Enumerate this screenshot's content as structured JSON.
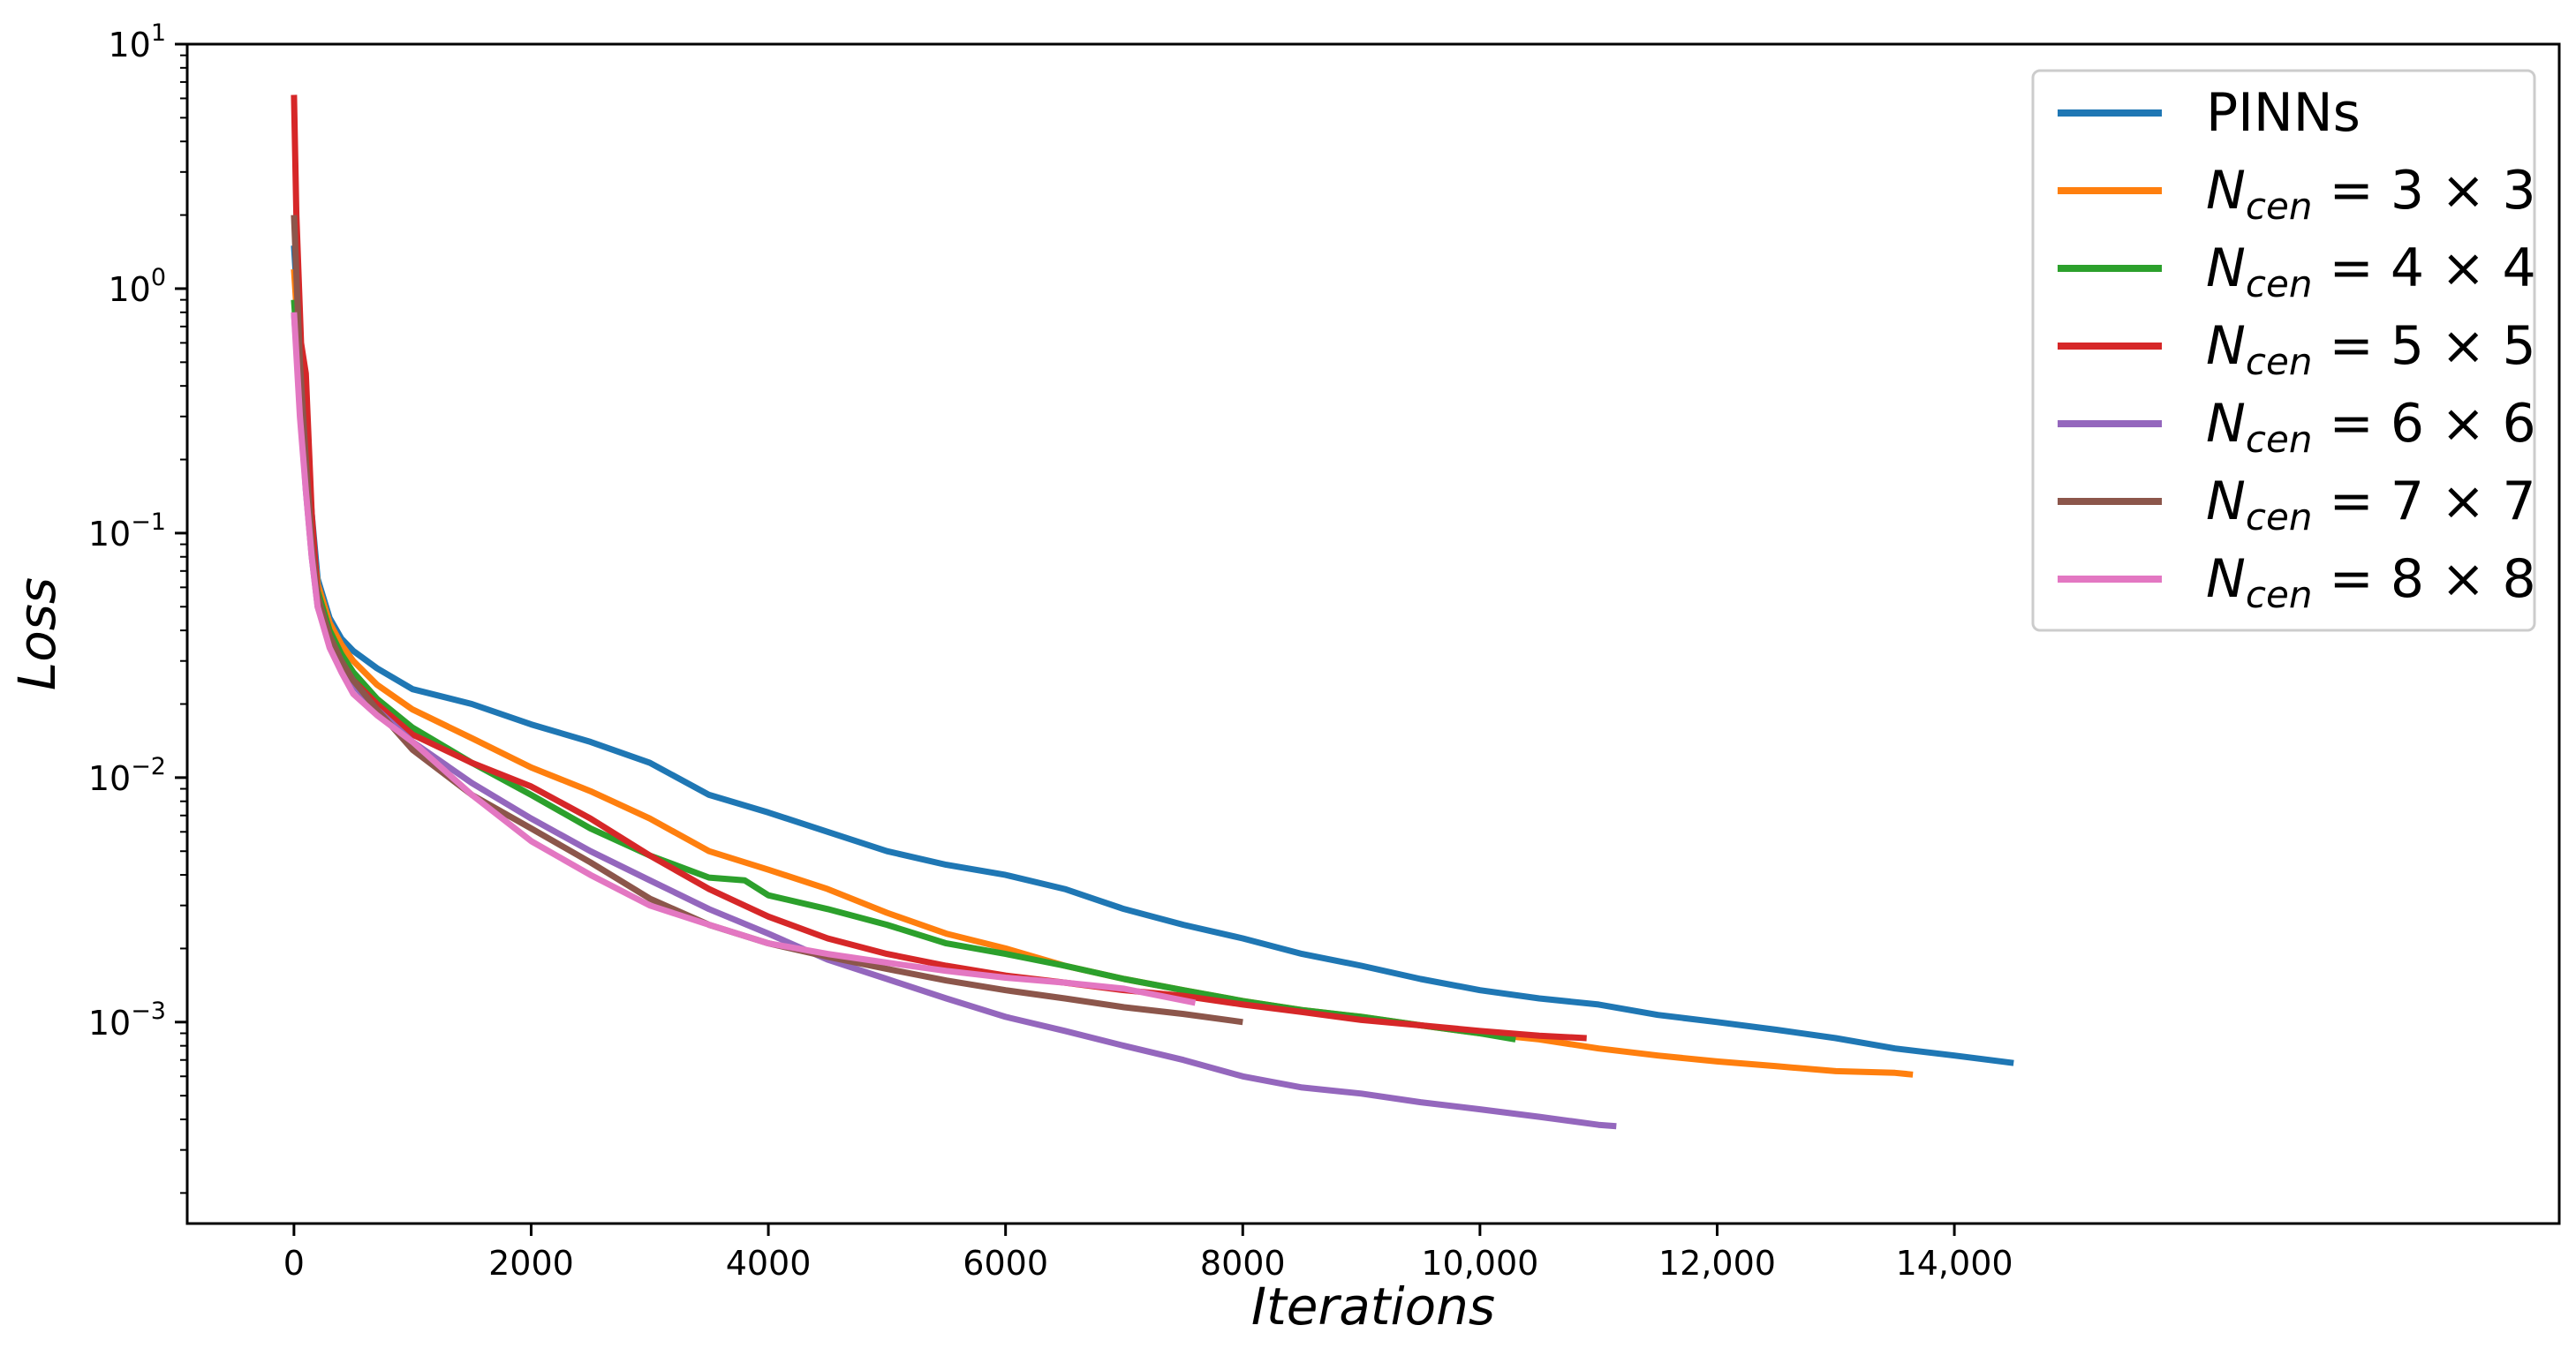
{
  "chart_data": {
    "type": "line",
    "title": "",
    "xlabel": "Iterations",
    "ylabel": "Loss",
    "xlim": [
      -900,
      19100
    ],
    "ylim": [
      0.00015,
      10
    ],
    "yscale": "log",
    "grid": false,
    "legend_position": "top-right",
    "x_ticks": [
      {
        "value": 0,
        "label": "0"
      },
      {
        "value": 2000,
        "label": "2000"
      },
      {
        "value": 4000,
        "label": "4000"
      },
      {
        "value": 6000,
        "label": "6000"
      },
      {
        "value": 8000,
        "label": "8000"
      },
      {
        "value": 10000,
        "label": "10,000"
      },
      {
        "value": 12000,
        "label": "12,000"
      },
      {
        "value": 14000,
        "label": "14,000"
      }
    ],
    "y_ticks": [
      {
        "value": 10,
        "base": "10",
        "exp": "1"
      },
      {
        "value": 1,
        "base": "10",
        "exp": "0"
      },
      {
        "value": 0.1,
        "base": "10",
        "exp": "−1"
      },
      {
        "value": 0.01,
        "base": "10",
        "exp": "−2"
      },
      {
        "value": 0.001,
        "base": "10",
        "exp": "−3"
      }
    ],
    "series": [
      {
        "name": "PINNs",
        "legend_main": "PINNs",
        "legend_sub": "",
        "legend_rest": "",
        "color": "#1f77b4",
        "x": [
          0,
          50,
          100,
          150,
          200,
          300,
          400,
          500,
          700,
          1000,
          1500,
          2000,
          2500,
          3000,
          3500,
          4000,
          4500,
          5000,
          5500,
          6000,
          6500,
          7000,
          7500,
          8000,
          8500,
          9000,
          9500,
          10000,
          10500,
          11000,
          11500,
          12000,
          12500,
          13000,
          13500,
          14000,
          14500
        ],
        "y": [
          1.5,
          0.6,
          0.25,
          0.12,
          0.065,
          0.045,
          0.037,
          0.033,
          0.028,
          0.023,
          0.02,
          0.0165,
          0.014,
          0.0115,
          0.0085,
          0.0072,
          0.006,
          0.005,
          0.0044,
          0.004,
          0.0035,
          0.0029,
          0.0025,
          0.0022,
          0.0019,
          0.0017,
          0.0015,
          0.00135,
          0.00125,
          0.00118,
          0.00107,
          0.001,
          0.00093,
          0.00086,
          0.00078,
          0.00073,
          0.00068
        ]
      },
      {
        "name": "N_cen = 3 × 3",
        "legend_main": "N",
        "legend_sub": "cen",
        "legend_rest": " = 3 × 3",
        "color": "#ff7f0e",
        "x": [
          0,
          50,
          100,
          150,
          200,
          300,
          400,
          500,
          700,
          1000,
          1500,
          2000,
          2500,
          3000,
          3500,
          4000,
          4500,
          5000,
          5500,
          6000,
          6500,
          7000,
          7500,
          8000,
          8500,
          9000,
          9500,
          10000,
          10500,
          11000,
          11500,
          12000,
          12500,
          13000,
          13500,
          13650
        ],
        "y": [
          1.2,
          0.5,
          0.2,
          0.1,
          0.062,
          0.043,
          0.035,
          0.03,
          0.024,
          0.019,
          0.0145,
          0.011,
          0.0088,
          0.0068,
          0.005,
          0.0042,
          0.0035,
          0.0028,
          0.0023,
          0.002,
          0.0017,
          0.0015,
          0.00135,
          0.00122,
          0.00112,
          0.00105,
          0.00097,
          0.0009,
          0.00085,
          0.00078,
          0.00073,
          0.00069,
          0.00066,
          0.00063,
          0.00062,
          0.00061
        ]
      },
      {
        "name": "N_cen = 4 × 4",
        "legend_main": "N",
        "legend_sub": "cen",
        "legend_rest": " = 4 × 4",
        "color": "#2ca02c",
        "x": [
          0,
          50,
          100,
          150,
          200,
          300,
          400,
          500,
          700,
          1000,
          1500,
          2000,
          2500,
          3000,
          3500,
          3800,
          4000,
          4500,
          5000,
          5500,
          6000,
          6500,
          7000,
          7500,
          8000,
          8500,
          9000,
          9500,
          10000,
          10300
        ],
        "y": [
          0.9,
          0.4,
          0.17,
          0.09,
          0.058,
          0.04,
          0.032,
          0.027,
          0.021,
          0.016,
          0.0115,
          0.0085,
          0.0062,
          0.0048,
          0.0039,
          0.0038,
          0.0033,
          0.0029,
          0.0025,
          0.0021,
          0.0019,
          0.0017,
          0.0015,
          0.00135,
          0.00122,
          0.00112,
          0.00105,
          0.00097,
          0.0009,
          0.00085
        ]
      },
      {
        "name": "N_cen = 5 × 5",
        "legend_main": "N",
        "legend_sub": "cen",
        "legend_rest": " = 5 × 5",
        "color": "#d62728",
        "x": [
          0,
          20,
          60,
          100,
          150,
          200,
          300,
          400,
          500,
          700,
          1000,
          1500,
          2000,
          2500,
          3000,
          3500,
          4000,
          4500,
          5000,
          5500,
          6000,
          6500,
          7000,
          7500,
          8000,
          8500,
          9000,
          9500,
          10000,
          10500,
          10900
        ],
        "y": [
          6.2,
          2.0,
          0.6,
          0.45,
          0.12,
          0.055,
          0.036,
          0.029,
          0.025,
          0.02,
          0.015,
          0.0115,
          0.0092,
          0.0068,
          0.0048,
          0.0035,
          0.0027,
          0.0022,
          0.0019,
          0.0017,
          0.00155,
          0.00145,
          0.00135,
          0.00128,
          0.00118,
          0.0011,
          0.00102,
          0.00097,
          0.00092,
          0.00088,
          0.00086
        ]
      },
      {
        "name": "N_cen = 6 × 6",
        "legend_main": "N",
        "legend_sub": "cen",
        "legend_rest": " = 6 × 6",
        "color": "#9467bd",
        "x": [
          0,
          50,
          100,
          150,
          200,
          300,
          400,
          500,
          700,
          1000,
          1500,
          2000,
          2500,
          3000,
          3500,
          4000,
          4500,
          5000,
          5500,
          6000,
          6500,
          7000,
          7500,
          8000,
          8500,
          9000,
          9500,
          10000,
          10500,
          11000,
          11150
        ],
        "y": [
          0.8,
          0.35,
          0.15,
          0.08,
          0.05,
          0.035,
          0.028,
          0.024,
          0.019,
          0.014,
          0.0095,
          0.0068,
          0.005,
          0.0038,
          0.0029,
          0.0023,
          0.0018,
          0.0015,
          0.00125,
          0.00105,
          0.00092,
          0.0008,
          0.0007,
          0.0006,
          0.00054,
          0.00051,
          0.00047,
          0.00044,
          0.00041,
          0.00038,
          0.000375
        ]
      },
      {
        "name": "N_cen = 7 × 7",
        "legend_main": "N",
        "legend_sub": "cen",
        "legend_rest": " = 7 × 7",
        "color": "#8c564b",
        "x": [
          0,
          50,
          100,
          150,
          200,
          300,
          400,
          500,
          700,
          1000,
          1500,
          2000,
          2500,
          3000,
          3500,
          4000,
          4500,
          5000,
          5500,
          6000,
          6500,
          7000,
          7500,
          8000
        ],
        "y": [
          2.0,
          0.5,
          0.2,
          0.09,
          0.055,
          0.038,
          0.03,
          0.025,
          0.019,
          0.013,
          0.0085,
          0.0062,
          0.0045,
          0.0032,
          0.0025,
          0.0021,
          0.00185,
          0.00165,
          0.00148,
          0.00135,
          0.00125,
          0.00115,
          0.00108,
          0.001
        ]
      },
      {
        "name": "N_cen = 8 × 8",
        "legend_main": "N",
        "legend_sub": "cen",
        "legend_rest": " = 8 × 8",
        "color": "#e377c2",
        "x": [
          0,
          50,
          100,
          150,
          200,
          300,
          400,
          500,
          700,
          1000,
          1500,
          2000,
          2500,
          3000,
          3500,
          4000,
          4500,
          5000,
          5500,
          6000,
          6500,
          7000,
          7600
        ],
        "y": [
          0.8,
          0.3,
          0.15,
          0.08,
          0.05,
          0.034,
          0.027,
          0.022,
          0.018,
          0.014,
          0.0085,
          0.0055,
          0.004,
          0.003,
          0.0025,
          0.0021,
          0.0019,
          0.00175,
          0.00162,
          0.00152,
          0.00145,
          0.00137,
          0.0012
        ]
      }
    ]
  }
}
